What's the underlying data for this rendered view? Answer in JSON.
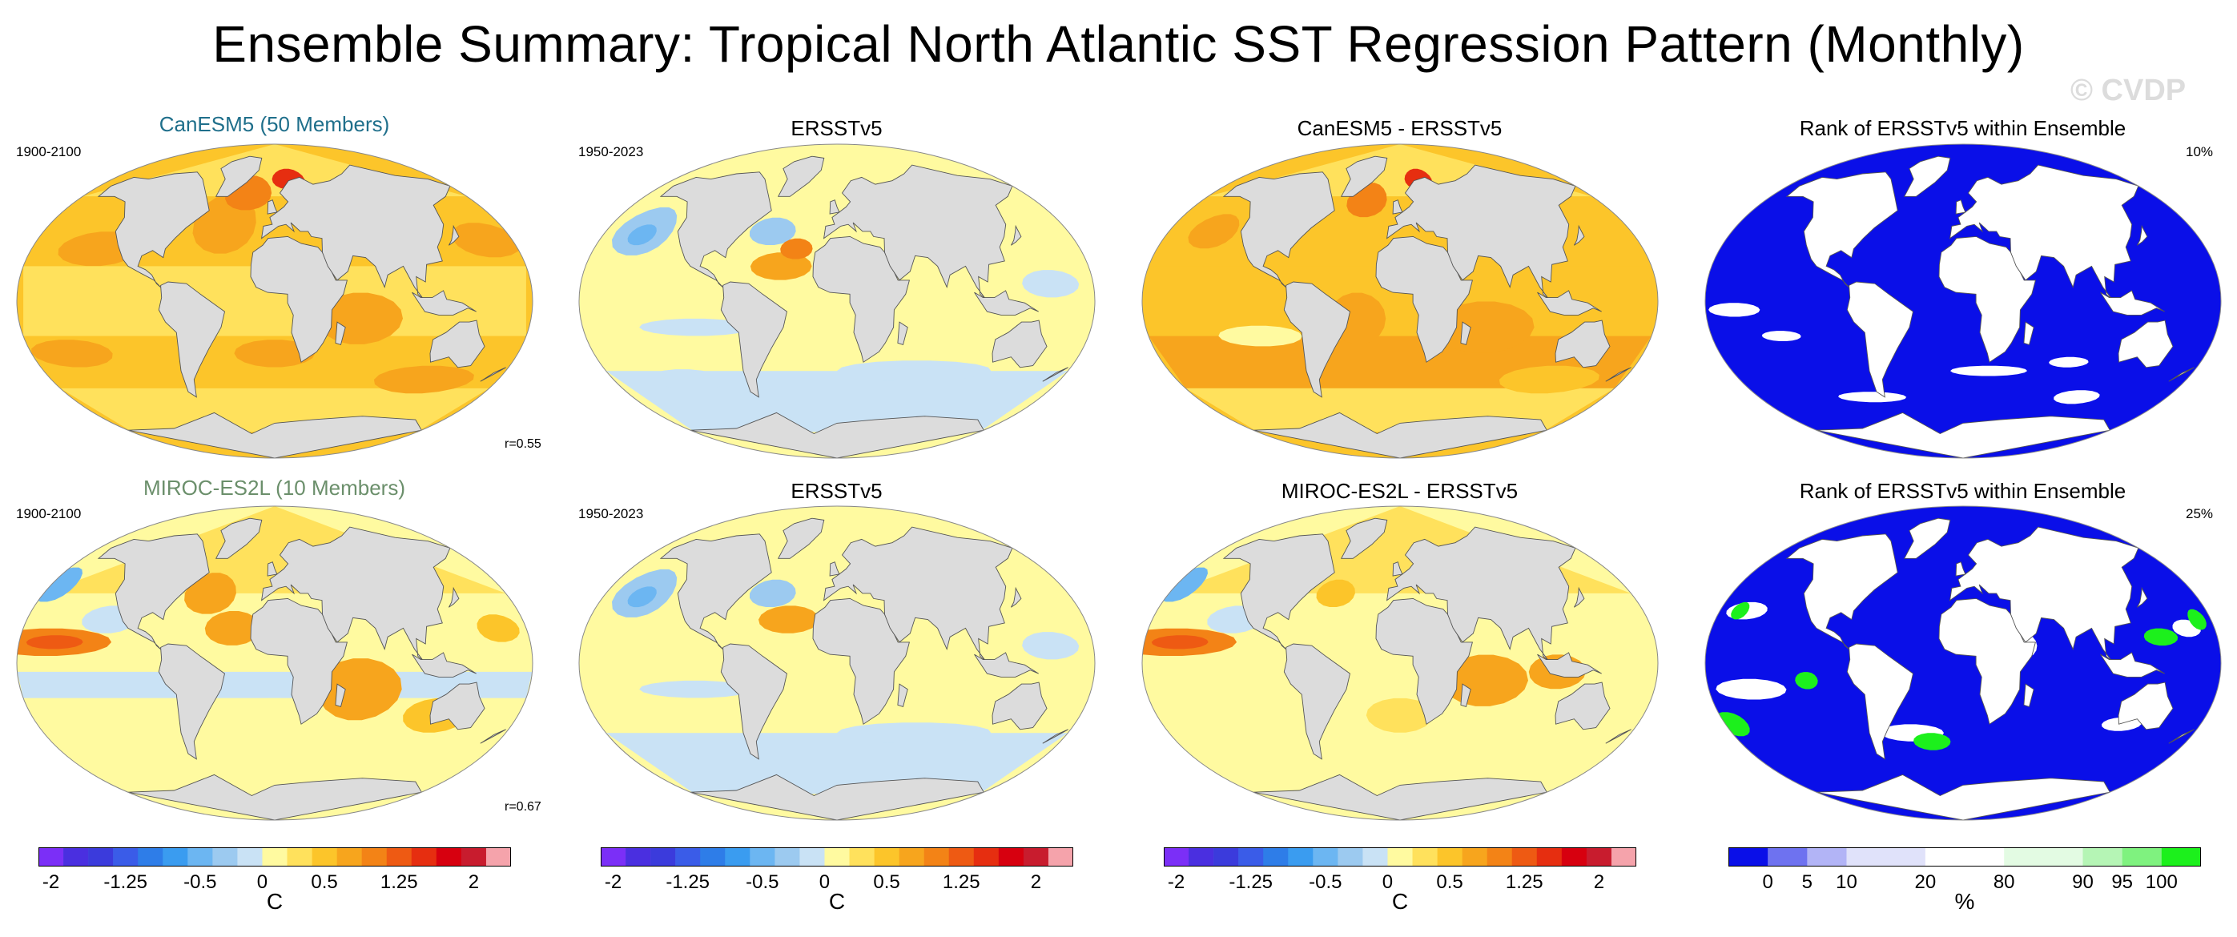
{
  "title": "Ensemble Summary: Tropical North Atlantic SST Regression Pattern (Monthly)",
  "watermark": "© CVDP",
  "rows": [
    {
      "model": {
        "title": "CanESM5 (50 Members)",
        "years": "1900-2100",
        "r": "r=0.55",
        "title_color": "#1f6f8b"
      },
      "obs": {
        "title": "ERSSTv5",
        "years": "1950-2023"
      },
      "diff": {
        "title": "CanESM5 - ERSSTv5"
      },
      "rank": {
        "title": "Rank of ERSSTv5 within Ensemble",
        "pct": "10%"
      }
    },
    {
      "model": {
        "title": "MIROC-ES2L (10 Members)",
        "years": "1900-2100",
        "r": "r=0.67",
        "title_color": "#6b8f6b"
      },
      "obs": {
        "title": "ERSSTv5",
        "years": "1950-2023"
      },
      "diff": {
        "title": "MIROC-ES2L - ERSSTv5"
      },
      "rank": {
        "title": "Rank of ERSSTv5 within Ensemble",
        "pct": "25%"
      }
    }
  ],
  "colorbars": {
    "sst": {
      "colors": [
        "#7b2ff7",
        "#4a2fe0",
        "#3b3bdc",
        "#3a5ce8",
        "#2e7de8",
        "#3a9cf0",
        "#6cb6f2",
        "#9ccaf0",
        "#c9e2f5",
        "#fffaa0",
        "#ffe15c",
        "#fcc52a",
        "#f7a51d",
        "#f38316",
        "#ee5a13",
        "#e62e10",
        "#d7000f",
        "#c81c2e",
        "#f5a3ab"
      ],
      "labels": [
        "-2",
        "-1.25",
        "-0.5",
        "0",
        "0.5",
        "1.25",
        "2"
      ],
      "label_slots": [
        0.5,
        3.5,
        6.5,
        9,
        11.5,
        14.5,
        17.5
      ],
      "unit": "C"
    },
    "rank": {
      "colors": [
        "#0a0fe8",
        "#6e72f0",
        "#b2b4f6",
        "#e0e2fa",
        "#e0e2fa",
        "#ffffff",
        "#ffffff",
        "#e3fbe3",
        "#e3fbe3",
        "#b5f5b5",
        "#7ff27f",
        "#1cf01c"
      ],
      "labels": [
        "0",
        "5",
        "10",
        "20",
        "80",
        "90",
        "95",
        "100"
      ],
      "label_slots": [
        1,
        2,
        3,
        5,
        7,
        9,
        10,
        11
      ],
      "unit": "%"
    }
  },
  "colors": {
    "land": "#dcdcdc",
    "coast": "#555555",
    "rank_low": "#0a0fe8",
    "rank_high": "#1cf01c"
  }
}
